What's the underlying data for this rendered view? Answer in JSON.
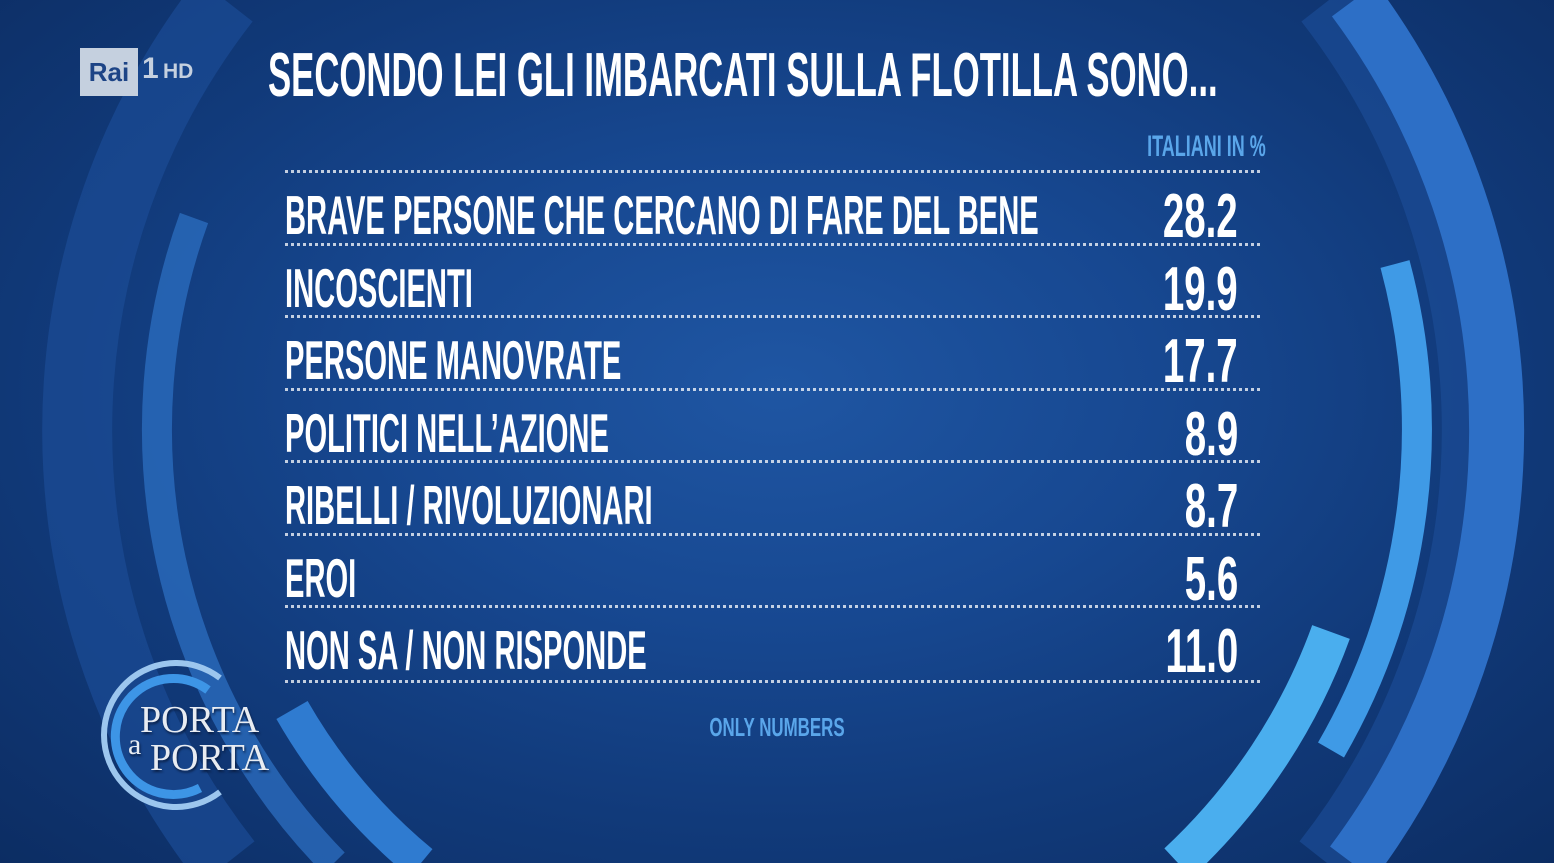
{
  "broadcaster": {
    "logo_text": "Rai",
    "channel": "1",
    "quality": "HD"
  },
  "program_logo": {
    "line1": "PORTA",
    "line2_small": "a",
    "line2": "PORTA"
  },
  "chart_data": {
    "type": "table",
    "title": "SECONDO LEI GLI IMBARCATI SULLA FLOTILLA SONO...",
    "column_header": "ITALIANI IN %",
    "categories": [
      "BRAVE PERSONE CHE CERCANO DI FARE DEL BENE",
      "INCOSCIENTI",
      "PERSONE MANOVRATE",
      "POLITICI NELL’AZIONE",
      "RIBELLI / RIVOLUZIONARI",
      "EROI",
      "NON SA / NON RISPONDE"
    ],
    "values": [
      "28.2",
      "19.9",
      "17.7",
      "8.9",
      "8.7",
      "5.6",
      "11.0"
    ],
    "source": "ONLY NUMBERS"
  },
  "colors": {
    "background": "#143f84",
    "accent": "#5aa6ea",
    "text": "#ffffff"
  }
}
